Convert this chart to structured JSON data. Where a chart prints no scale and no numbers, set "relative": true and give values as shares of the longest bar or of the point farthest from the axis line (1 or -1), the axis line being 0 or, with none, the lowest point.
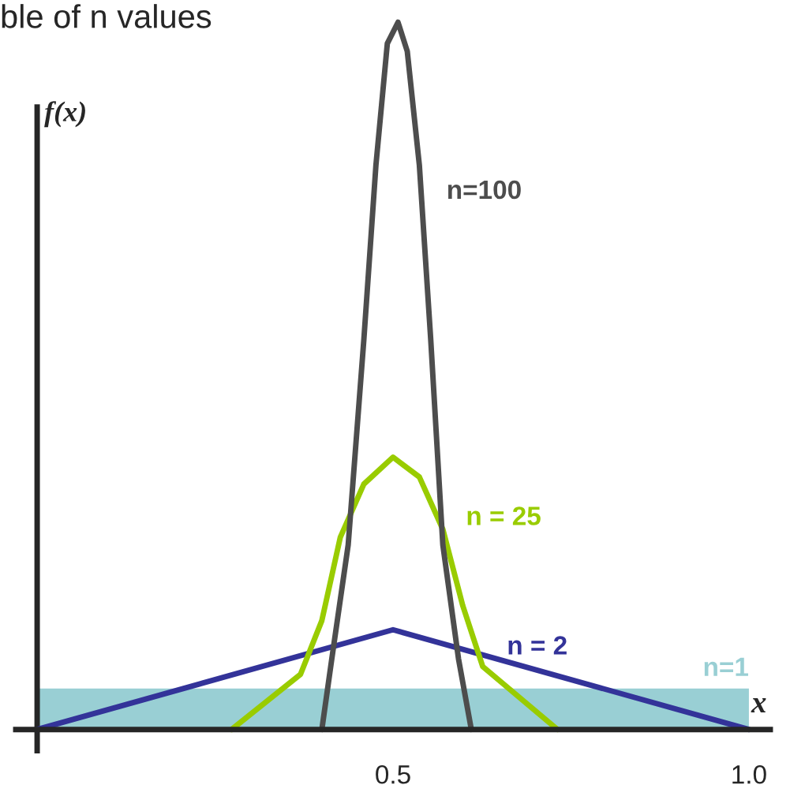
{
  "chart_data": {
    "type": "line",
    "title": "ble of n values",
    "xlabel": "x",
    "ylabel": "f(x)",
    "relative": true,
    "xlim": [
      -0.03,
      1.03
    ],
    "xticks": [
      0.5,
      {
        "value": 1.0,
        "label": "1.0"
      }
    ],
    "series": [
      {
        "name": "n=1",
        "type": "area",
        "color": "#99cfd4",
        "x": [
          0,
          1
        ],
        "values": [
          0.058,
          0.058
        ]
      },
      {
        "name": "n = 2",
        "color": "#333399",
        "x": [
          0,
          0.5,
          1
        ],
        "values": [
          0,
          0.141,
          0
        ]
      },
      {
        "name": "n = 25",
        "color": "#99cc00",
        "x": [
          0.273,
          0.37,
          0.4,
          0.426,
          0.459,
          0.5,
          0.537,
          0.57,
          0.598,
          0.626,
          0.731
        ],
        "values": [
          0,
          0.078,
          0.154,
          0.272,
          0.347,
          0.385,
          0.357,
          0.283,
          0.175,
          0.089,
          0
        ]
      },
      {
        "name": "n=100",
        "color": "#4d4d4d",
        "x": [
          0.4,
          0.414,
          0.437,
          0.459,
          0.476,
          0.492,
          0.507,
          0.52,
          0.537,
          0.553,
          0.57,
          0.592,
          0.61
        ],
        "values": [
          0,
          0.1,
          0.261,
          0.551,
          0.798,
          0.97,
          1.0,
          0.959,
          0.798,
          0.551,
          0.261,
          0.1,
          0
        ]
      }
    ]
  }
}
